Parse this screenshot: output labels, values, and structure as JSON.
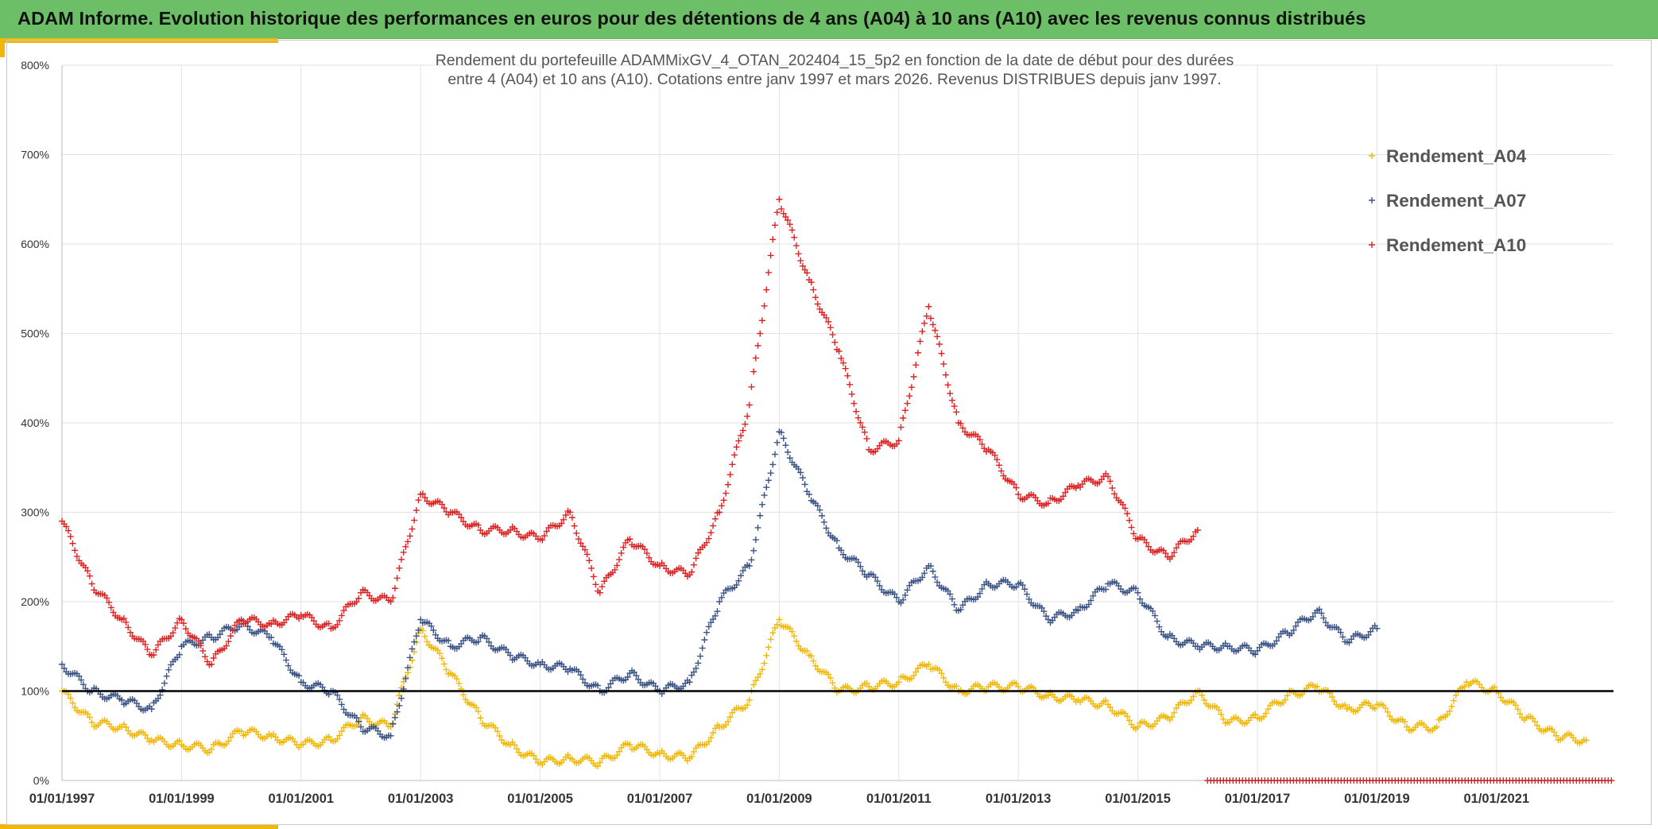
{
  "banner": {
    "title": "ADAM Informe. Evolution historique des performances en euros pour des détentions de 4 ans (A04) à 10 ans (A10) avec les revenus connus distribués"
  },
  "colors": {
    "banner": "#6dbf67",
    "accent_gold": "#f2b705",
    "a04": "#f2b705",
    "a07": "#3a5386",
    "a10": "#e02121",
    "reference_line": "#000000"
  },
  "chart_data": {
    "type": "scatter",
    "title": "Rendement du portefeuille ADAMMixGV_4_OTAN_202404_15_5p2  en fonction de la date de début pour des durées",
    "subtitle": "entre 4 (A04) et 10 ans (A10). Cotations entre janv 1997 et mars 2026. Revenus DISTRIBUES depuis janv 1997.",
    "x_tick_labels": [
      "01/01/1997",
      "01/01/1999",
      "01/01/2001",
      "01/01/2003",
      "01/01/2005",
      "01/01/2007",
      "01/01/2009",
      "01/01/2011",
      "01/01/2013",
      "01/01/2015",
      "01/01/2017",
      "01/01/2019",
      "01/01/2021"
    ],
    "x_range": [
      "1997-01-01",
      "2023-01-01"
    ],
    "y_tick_labels": [
      "0%",
      "100%",
      "200%",
      "300%",
      "400%",
      "500%",
      "600%",
      "700%",
      "800%"
    ],
    "y_range": [
      0,
      800
    ],
    "grid": true,
    "legend_position": "top-right",
    "reference_line": 100,
    "series": [
      {
        "name": "Rendement_A04",
        "color": "#f2b705",
        "x": [
          "1997-01",
          "1997-07",
          "1998-01",
          "1998-07",
          "1999-01",
          "1999-07",
          "2000-01",
          "2000-07",
          "2001-01",
          "2001-07",
          "2002-01",
          "2002-07",
          "2003-01",
          "2003-07",
          "2004-01",
          "2004-07",
          "2005-01",
          "2005-07",
          "2006-01",
          "2006-07",
          "2007-01",
          "2007-07",
          "2008-01",
          "2008-07",
          "2009-01",
          "2009-07",
          "2010-01",
          "2010-07",
          "2011-01",
          "2011-07",
          "2012-01",
          "2012-07",
          "2013-01",
          "2013-07",
          "2014-01",
          "2014-07",
          "2015-01",
          "2015-07",
          "2016-01",
          "2016-07",
          "2017-01",
          "2017-07",
          "2018-01",
          "2018-07",
          "2019-01",
          "2019-07",
          "2020-01",
          "2020-07",
          "2021-01",
          "2021-07",
          "2022-01",
          "2022-07"
        ],
        "values": [
          100,
          65,
          60,
          45,
          40,
          35,
          55,
          50,
          40,
          45,
          70,
          60,
          170,
          120,
          70,
          40,
          20,
          25,
          20,
          40,
          30,
          25,
          60,
          90,
          180,
          140,
          100,
          105,
          110,
          130,
          100,
          105,
          105,
          95,
          90,
          85,
          60,
          70,
          100,
          65,
          70,
          95,
          105,
          80,
          85,
          60,
          60,
          110,
          100,
          70,
          50,
          45
        ]
      },
      {
        "name": "Rendement_A07",
        "color": "#3a5386",
        "x": [
          "1997-01",
          "1997-07",
          "1998-01",
          "1998-07",
          "1999-01",
          "1999-07",
          "2000-01",
          "2000-07",
          "2001-01",
          "2001-07",
          "2002-01",
          "2002-07",
          "2003-01",
          "2003-07",
          "2004-01",
          "2004-07",
          "2005-01",
          "2005-07",
          "2006-01",
          "2006-07",
          "2007-01",
          "2007-07",
          "2008-01",
          "2008-07",
          "2009-01",
          "2009-07",
          "2010-01",
          "2010-07",
          "2011-01",
          "2011-07",
          "2012-01",
          "2012-07",
          "2013-01",
          "2013-07",
          "2014-01",
          "2014-07",
          "2015-01",
          "2015-07",
          "2016-01",
          "2016-07",
          "2017-01",
          "2017-07",
          "2018-01",
          "2018-07",
          "2019-01"
        ],
        "values": [
          130,
          100,
          90,
          80,
          150,
          160,
          175,
          160,
          110,
          100,
          60,
          50,
          180,
          150,
          160,
          140,
          130,
          125,
          100,
          120,
          100,
          110,
          200,
          240,
          390,
          320,
          260,
          230,
          200,
          240,
          190,
          220,
          220,
          180,
          190,
          220,
          210,
          160,
          150,
          150,
          145,
          165,
          190,
          155,
          170
        ]
      },
      {
        "name": "Rendement_A10",
        "color": "#e02121",
        "x": [
          "1997-01",
          "1997-07",
          "1998-01",
          "1998-07",
          "1999-01",
          "1999-07",
          "2000-01",
          "2000-07",
          "2001-01",
          "2001-07",
          "2002-01",
          "2002-07",
          "2003-01",
          "2003-07",
          "2004-01",
          "2004-07",
          "2005-01",
          "2005-07",
          "2006-01",
          "2006-07",
          "2007-01",
          "2007-07",
          "2008-01",
          "2008-07",
          "2009-01",
          "2009-07",
          "2010-01",
          "2010-07",
          "2011-01",
          "2011-07",
          "2012-01",
          "2012-07",
          "2013-01",
          "2013-07",
          "2014-01",
          "2014-07",
          "2015-01",
          "2015-07",
          "2016-01"
        ],
        "values": [
          290,
          220,
          180,
          140,
          180,
          130,
          180,
          175,
          185,
          170,
          210,
          200,
          320,
          300,
          280,
          280,
          270,
          300,
          210,
          270,
          240,
          230,
          300,
          420,
          650,
          560,
          480,
          370,
          380,
          530,
          400,
          370,
          320,
          310,
          330,
          340,
          270,
          250,
          280
        ]
      }
    ]
  }
}
